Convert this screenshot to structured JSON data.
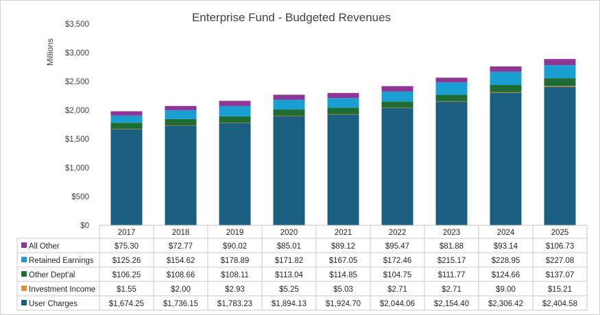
{
  "chart_data": {
    "type": "bar",
    "stacked": true,
    "title": "Enterprise Fund - Budgeted Revenues",
    "xlabel": "",
    "ylabel": "Millions",
    "ylim": [
      0,
      3500
    ],
    "y_ticks": [
      "$0",
      "$500",
      "$1,000",
      "$1,500",
      "$2,000",
      "$2,500",
      "$3,000",
      "$3,500"
    ],
    "grid": false,
    "legend": "data-table",
    "categories": [
      "2017",
      "2018",
      "2019",
      "2020",
      "2021",
      "2022",
      "2023",
      "2024",
      "2025"
    ],
    "series": [
      {
        "name": "User Charges",
        "color": "#1a5e80",
        "values": [
          1674.25,
          1736.15,
          1783.23,
          1894.13,
          1924.7,
          2044.06,
          2154.4,
          2306.42,
          2404.58
        ],
        "labels": [
          "$1,674.25",
          "$1,736.15",
          "$1,783.23",
          "$1,894.13",
          "$1,924.70",
          "$2,044.06",
          "$2,154.40",
          "$2,306.42",
          "$2,404.58"
        ]
      },
      {
        "name": "Investment Income",
        "color": "#e0923f",
        "values": [
          1.55,
          2.0,
          2.93,
          5.25,
          5.03,
          2.71,
          2.71,
          9.0,
          15.21
        ],
        "labels": [
          "$1.55",
          "$2.00",
          "$2.93",
          "$5.25",
          "$5.03",
          "$2.71",
          "$2.71",
          "$9.00",
          "$15.21"
        ]
      },
      {
        "name": "Other Dept'al",
        "color": "#1e6b34",
        "values": [
          106.25,
          108.66,
          108.11,
          113.04,
          114.85,
          104.75,
          111.77,
          124.66,
          137.07
        ],
        "labels": [
          "$106.25",
          "$108.66",
          "$108.11",
          "$113.04",
          "$114.85",
          "$104.75",
          "$111.77",
          "$124.66",
          "$137.07"
        ]
      },
      {
        "name": "Retained Earnings",
        "color": "#199fd1",
        "values": [
          125.26,
          154.62,
          178.89,
          171.82,
          167.05,
          172.46,
          215.17,
          228.95,
          227.08
        ],
        "labels": [
          "$125.26",
          "$154.62",
          "$178.89",
          "$171.82",
          "$167.05",
          "$172.46",
          "$215.17",
          "$228.95",
          "$227.08"
        ]
      },
      {
        "name": "All Other",
        "color": "#8e3596",
        "values": [
          75.3,
          72.77,
          90.02,
          85.01,
          89.12,
          95.47,
          81.88,
          93.14,
          106.73
        ],
        "labels": [
          "$75.30",
          "$72.77",
          "$90.02",
          "$85.01",
          "$89.12",
          "$95.47",
          "$81.88",
          "$93.14",
          "$106.73"
        ]
      }
    ],
    "table_row_order": [
      "All Other",
      "Retained Earnings",
      "Other Dept'al",
      "Investment Income",
      "User Charges"
    ]
  }
}
